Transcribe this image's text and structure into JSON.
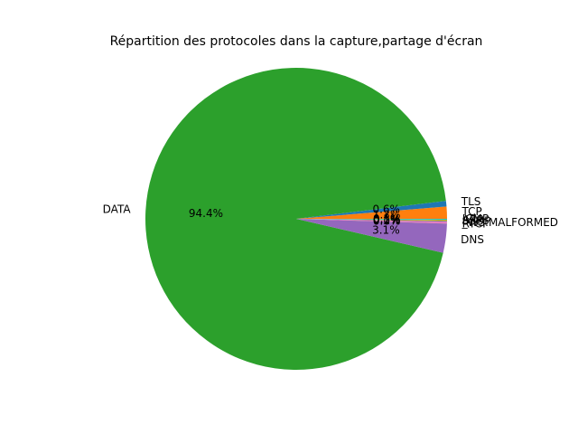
{
  "chart_data": {
    "type": "pie",
    "title": "Répartition des protocoles dans la capture,partage d'écran",
    "start_angle_deg": 0,
    "direction": "counterclockwise",
    "slices": [
      {
        "label": "TCP",
        "value": 1.3,
        "pct_label": "1.3%",
        "color": "#ff7f0e"
      },
      {
        "label": "TLS",
        "value": 0.6,
        "pct_label": "0.6%",
        "color": "#1f77b4"
      },
      {
        "label": "DATA",
        "value": 94.4,
        "pct_label": "94.4%",
        "color": "#2ca02c"
      },
      {
        "label": "DNS",
        "value": 3.1,
        "pct_label": "3.1%",
        "color": "#9467bd"
      },
      {
        "label": "RTCP",
        "value": 0.01,
        "pct_label": "0.0%",
        "color": "#8c564b"
      },
      {
        "label": "_WS.MALFORMED",
        "value": 0.2,
        "pct_label": "0.2%",
        "color": "#e377c2"
      },
      {
        "label": "SSDP",
        "value": 0.1,
        "pct_label": "0.1%",
        "color": "#7f7f7f"
      },
      {
        "label": "ARP",
        "value": 0.1,
        "pct_label": "0.1%",
        "color": "#bcbd22"
      },
      {
        "label": "ICMP",
        "value": 0.1,
        "pct_label": "0.1%",
        "color": "#17becf"
      }
    ]
  }
}
